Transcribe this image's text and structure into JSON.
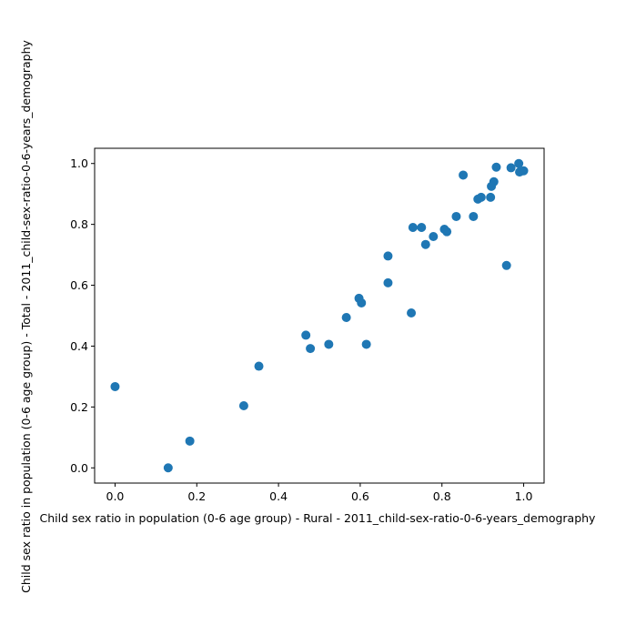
{
  "chart_data": {
    "type": "scatter",
    "title": "",
    "xlabel": "Child sex ratio in population (0-6 age group) - Rural - 2011_child-sex-ratio-0-6-years_demography",
    "ylabel": "Child sex ratio in population (0-6 age group) - Total - 2011_child-sex-ratio-0-6-years_demography",
    "xlim": [
      -0.05,
      1.05
    ],
    "ylim": [
      -0.05,
      1.05
    ],
    "xticks": [
      "0.0",
      "0.2",
      "0.4",
      "0.6",
      "0.8",
      "1.0"
    ],
    "yticks": [
      "0.0",
      "0.2",
      "0.4",
      "0.6",
      "0.8",
      "1.0"
    ],
    "grid": false,
    "marker_color": "#1f77b4",
    "points": [
      {
        "x": 0.0,
        "y": 0.267
      },
      {
        "x": 0.13,
        "y": 0.0
      },
      {
        "x": 0.183,
        "y": 0.088
      },
      {
        "x": 0.315,
        "y": 0.204
      },
      {
        "x": 0.352,
        "y": 0.334
      },
      {
        "x": 0.467,
        "y": 0.436
      },
      {
        "x": 0.478,
        "y": 0.392
      },
      {
        "x": 0.523,
        "y": 0.406
      },
      {
        "x": 0.566,
        "y": 0.494
      },
      {
        "x": 0.597,
        "y": 0.557
      },
      {
        "x": 0.603,
        "y": 0.542
      },
      {
        "x": 0.615,
        "y": 0.406
      },
      {
        "x": 0.668,
        "y": 0.696
      },
      {
        "x": 0.668,
        "y": 0.608
      },
      {
        "x": 0.725,
        "y": 0.509
      },
      {
        "x": 0.729,
        "y": 0.79
      },
      {
        "x": 0.75,
        "y": 0.79
      },
      {
        "x": 0.76,
        "y": 0.734
      },
      {
        "x": 0.779,
        "y": 0.76
      },
      {
        "x": 0.806,
        "y": 0.784
      },
      {
        "x": 0.812,
        "y": 0.776
      },
      {
        "x": 0.835,
        "y": 0.826
      },
      {
        "x": 0.852,
        "y": 0.962
      },
      {
        "x": 0.877,
        "y": 0.826
      },
      {
        "x": 0.888,
        "y": 0.883
      },
      {
        "x": 0.896,
        "y": 0.889
      },
      {
        "x": 0.919,
        "y": 0.889
      },
      {
        "x": 0.921,
        "y": 0.925
      },
      {
        "x": 0.927,
        "y": 0.94
      },
      {
        "x": 0.933,
        "y": 0.988
      },
      {
        "x": 0.958,
        "y": 0.665
      },
      {
        "x": 0.969,
        "y": 0.986
      },
      {
        "x": 0.988,
        "y": 1.0
      },
      {
        "x": 0.99,
        "y": 0.972
      },
      {
        "x": 1.0,
        "y": 0.976
      }
    ]
  }
}
